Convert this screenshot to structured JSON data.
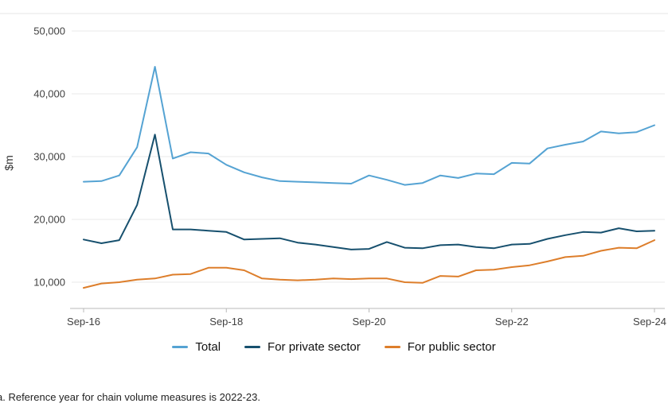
{
  "chart_data": {
    "type": "line",
    "x": [
      "Sep-16",
      "Dec-16",
      "Mar-17",
      "Jun-17",
      "Sep-17",
      "Dec-17",
      "Mar-18",
      "Jun-18",
      "Sep-18",
      "Dec-18",
      "Mar-19",
      "Jun-19",
      "Sep-19",
      "Dec-19",
      "Mar-20",
      "Jun-20",
      "Sep-20",
      "Dec-20",
      "Mar-21",
      "Jun-21",
      "Sep-21",
      "Dec-21",
      "Mar-22",
      "Jun-22",
      "Sep-22",
      "Dec-22",
      "Mar-23",
      "Jun-23",
      "Sep-23",
      "Dec-23",
      "Mar-24",
      "Jun-24",
      "Sep-24"
    ],
    "x_tick_indices": [
      0,
      8,
      16,
      24,
      32
    ],
    "x_tick_labels": [
      "Sep-16",
      "Sep-18",
      "Sep-20",
      "Sep-22",
      "Sep-24"
    ],
    "ylabel": "$m",
    "y_ticks": [
      10000,
      20000,
      30000,
      40000,
      50000
    ],
    "y_tick_labels": [
      "10,000",
      "20,000",
      "30,000",
      "40,000",
      "50,000"
    ],
    "ylim": [
      5800,
      52000
    ],
    "grid": true,
    "legend_position": "bottom",
    "series": [
      {
        "name": "Total",
        "color": "#55a3d3",
        "values": [
          26000,
          26100,
          27000,
          31500,
          44300,
          29700,
          30700,
          30500,
          28700,
          27500,
          26700,
          26100,
          26000,
          25900,
          25800,
          25700,
          27000,
          26300,
          25500,
          25800,
          27000,
          26600,
          27300,
          27200,
          29000,
          28900,
          31300,
          31900,
          32400,
          34000,
          33700,
          33900,
          35000
        ]
      },
      {
        "name": "For private sector",
        "color": "#17506e",
        "values": [
          16800,
          16200,
          16700,
          22300,
          33500,
          18400,
          18400,
          18200,
          18000,
          16800,
          16900,
          17000,
          16300,
          16000,
          15600,
          15200,
          15300,
          16400,
          15500,
          15400,
          15900,
          16000,
          15600,
          15400,
          16000,
          16100,
          16900,
          17500,
          18000,
          17900,
          18600,
          18100,
          18200
        ]
      },
      {
        "name": "For public sector",
        "color": "#dd7e2b",
        "values": [
          9100,
          9800,
          10000,
          10400,
          10600,
          11200,
          11300,
          12300,
          12300,
          11900,
          10600,
          10400,
          10300,
          10400,
          10600,
          10500,
          10600,
          10600,
          10000,
          9900,
          11000,
          10900,
          11900,
          12000,
          12400,
          12700,
          13300,
          14000,
          14200,
          15000,
          15500,
          15400,
          16700
        ]
      }
    ]
  },
  "footnote": "a. Reference year for chain volume measures is 2022-23."
}
